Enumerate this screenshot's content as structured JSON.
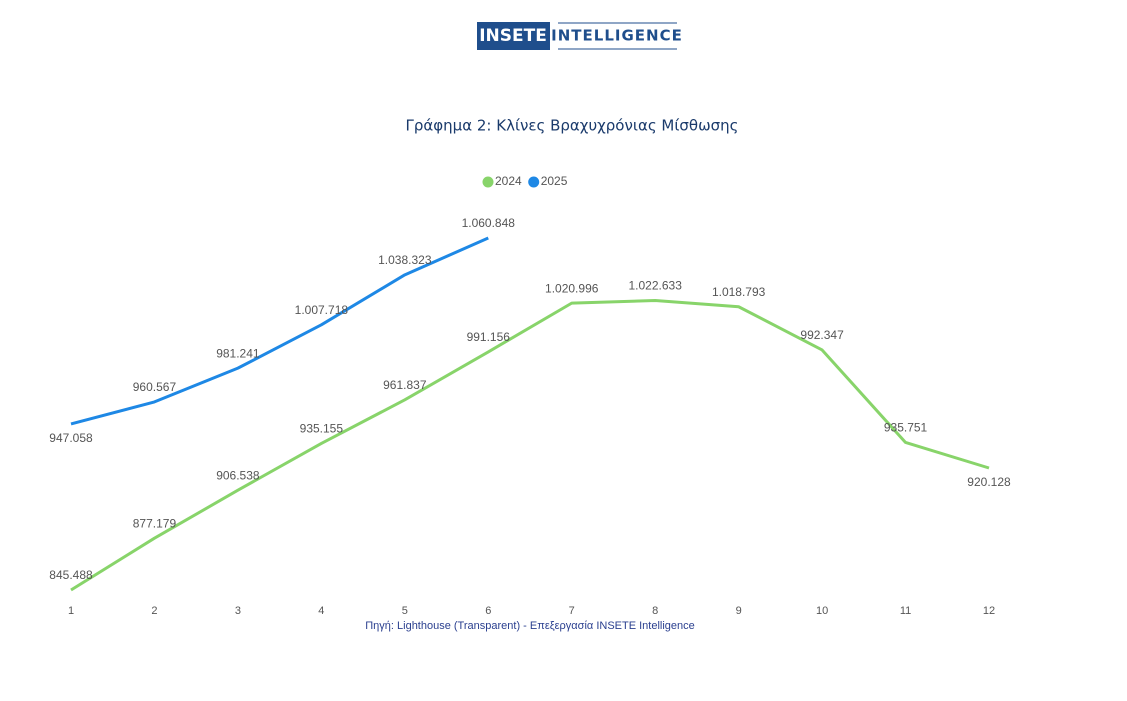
{
  "logo": {
    "brand": "INSETE",
    "product": "INTELLIGENCE"
  },
  "chart_data": {
    "type": "line",
    "title": "Γράφημα 2: Κλίνες Βραχυχρόνιας Μίσθωσης",
    "source": "Πηγή: Lighthouse (Transparent) - Επεξεργασία INSETE Intelligence",
    "categories": [
      "1",
      "2",
      "3",
      "4",
      "5",
      "6",
      "7",
      "8",
      "9",
      "10",
      "11",
      "12"
    ],
    "series": [
      {
        "name": "2024",
        "color": "#88d46a",
        "values": [
          845488,
          877179,
          906538,
          935155,
          961837,
          991156,
          1020996,
          1022633,
          1018793,
          992347,
          935751,
          920128
        ],
        "value_labels": [
          "845.488",
          "877.179",
          "906.538",
          "935.155",
          "961.837",
          "991.156",
          "1.020.996",
          "1.022.633",
          "1.018.793",
          "992.347",
          "935.751",
          "920.128"
        ]
      },
      {
        "name": "2025",
        "color": "#1e88e5",
        "values": [
          947058,
          960567,
          981241,
          1007718,
          1038323,
          1060848,
          null,
          null,
          null,
          null,
          null,
          null
        ],
        "value_labels": [
          "947.058",
          "960.567",
          "981.241",
          "1.007.718",
          "1.038.323",
          "1.060.848",
          null,
          null,
          null,
          null,
          null,
          null
        ]
      }
    ],
    "legend": "top"
  }
}
